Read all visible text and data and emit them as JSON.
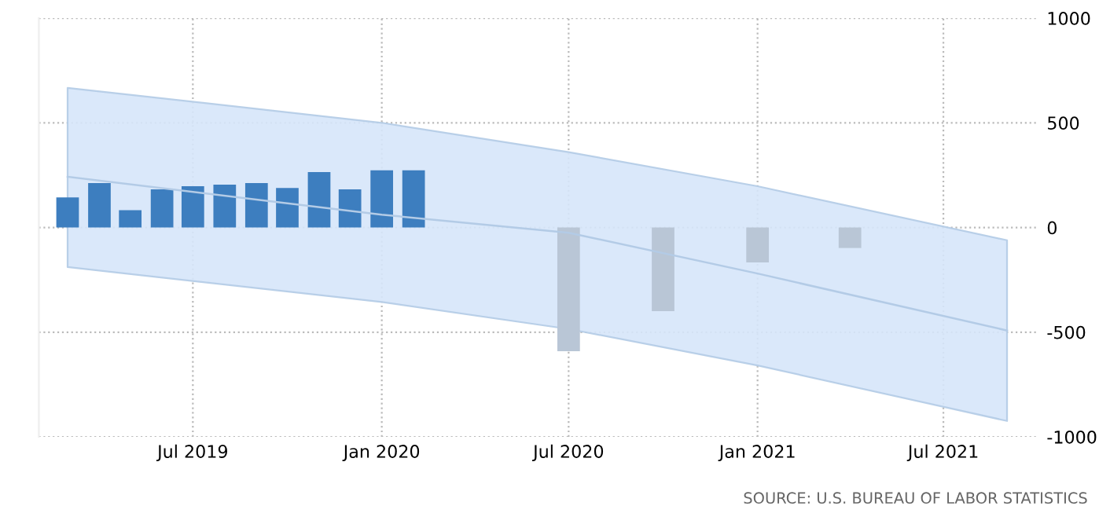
{
  "chart_data": {
    "type": "bar",
    "series": [
      {
        "color": "#3d7ebf",
        "x": [
          "2019-03-01",
          "2019-04-01",
          "2019-05-01",
          "2019-06-01",
          "2019-07-01",
          "2019-08-01",
          "2019-09-01",
          "2019-10-01",
          "2019-11-01",
          "2019-12-01",
          "2020-01-01",
          "2020-02-01"
        ],
        "values": [
          144,
          212,
          83,
          182,
          197,
          205,
          212,
          189,
          265,
          182,
          273,
          273
        ]
      },
      {
        "color": "#b9c6d6",
        "x": [
          "2020-07-01",
          "2020-10-01",
          "2021-01-01",
          "2021-04-01"
        ],
        "values": [
          -591,
          -400,
          -167,
          -98
        ]
      },
      {
        "type": "line",
        "color": "#b3cbe6",
        "x": [
          "2019-03-01",
          "2020-01-01",
          "2020-07-01",
          "2021-01-01",
          "2021-09-01"
        ],
        "values": [
          242,
          61,
          -25,
          -220,
          -492
        ],
        "lower": [
          -189,
          -356,
          -485,
          -659,
          -924
        ],
        "upper": [
          667,
          500,
          360,
          197,
          -61
        ]
      }
    ],
    "xlim": [
      "2019-02-01",
      "2021-10-01"
    ],
    "xticks": [
      {
        "value": "2019-07-01",
        "label": "Jul 2019"
      },
      {
        "value": "2020-01-01",
        "label": "Jan 2020"
      },
      {
        "value": "2020-07-01",
        "label": "Jul 2020"
      },
      {
        "value": "2021-01-01",
        "label": "Jan 2021"
      },
      {
        "value": "2021-07-01",
        "label": "Jul 2021"
      }
    ],
    "ylim": [
      -1000,
      1000
    ],
    "yticks": [
      -1000,
      -500,
      0,
      500,
      1000
    ],
    "grid": true,
    "annotations": [
      "SOURCE: U.S. BUREAU OF LABOR STATISTICS"
    ]
  }
}
